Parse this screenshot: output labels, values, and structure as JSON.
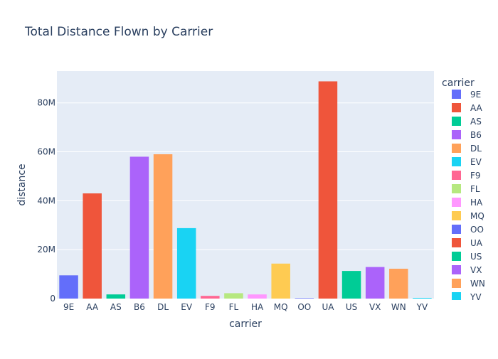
{
  "chart_data": {
    "type": "bar",
    "title": "Total Distance Flown by Carrier",
    "xlabel": "carrier",
    "ylabel": "distance",
    "legend_title": "carrier",
    "legend_position": "right",
    "ylim": [
      0,
      93000000
    ],
    "yticks": [
      0,
      20000000,
      40000000,
      60000000,
      80000000
    ],
    "ytick_labels": [
      "0",
      "20M",
      "40M",
      "60M",
      "80M"
    ],
    "grid": true,
    "plot_background": "#e5ecf6",
    "categories": [
      "9E",
      "AA",
      "AS",
      "B6",
      "DL",
      "EV",
      "F9",
      "FL",
      "HA",
      "MQ",
      "OO",
      "UA",
      "US",
      "VX",
      "WN",
      "YV"
    ],
    "values": [
      9500000,
      43000000,
      1700000,
      58000000,
      59000000,
      28800000,
      1100000,
      2200000,
      1700000,
      14300000,
      200000,
      88800000,
      11300000,
      12900000,
      12200000,
      300000
    ],
    "colors": [
      "#636efa",
      "#EF553B",
      "#00cc96",
      "#ab63fa",
      "#FFA15A",
      "#19d3f3",
      "#FF6692",
      "#B6E880",
      "#FF97FF",
      "#FECB52",
      "#636efa",
      "#EF553B",
      "#00cc96",
      "#ab63fa",
      "#FFA15A",
      "#19d3f3"
    ]
  }
}
